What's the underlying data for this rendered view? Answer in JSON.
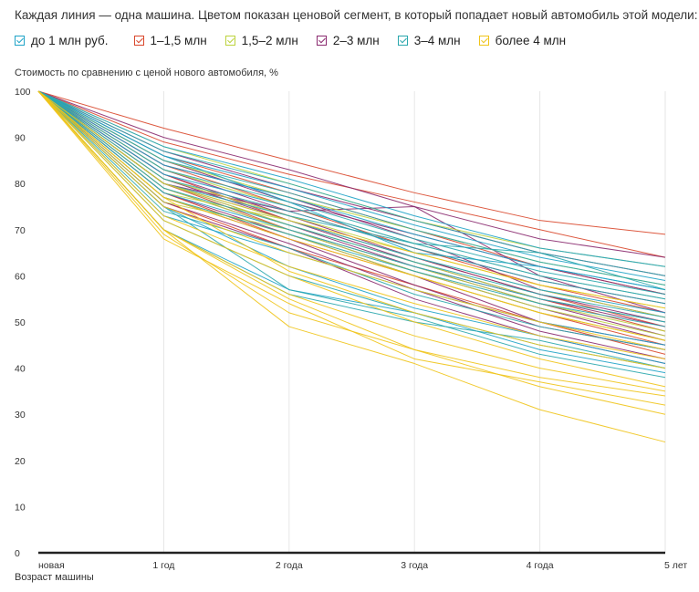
{
  "chart_data": {
    "type": "line",
    "title": "Каждая линия — одна машина. Цветом показан ценовой сегмент, в который попадает новый автомобиль этой модели:",
    "ylabel": "Стоимость по сравнению с ценой нового автомобиля, %",
    "xlabel": "Возраст машины",
    "categories": [
      "новая",
      "1 год",
      "2 года",
      "3 года",
      "4 года",
      "5 лет"
    ],
    "ylim": [
      0,
      100
    ],
    "yticks": [
      0,
      10,
      20,
      30,
      40,
      50,
      60,
      70,
      80,
      90,
      100
    ],
    "grid": "vertical",
    "legend": "top",
    "segments": [
      {
        "label": "до 1 млн руб.",
        "color": "#1fa3c7"
      },
      {
        "label": "1–1,5 млн",
        "color": "#d9472b"
      },
      {
        "label": "1,5–2 млн",
        "color": "#bcd23c"
      },
      {
        "label": "2–3 млн",
        "color": "#8a2a6f"
      },
      {
        "label": "3–4 млн",
        "color": "#2aa7ad"
      },
      {
        "label": "более 4 млн",
        "color": "#f0c419"
      }
    ],
    "series": [
      {
        "segment": 1,
        "values": [
          100,
          92,
          85,
          78,
          72,
          69
        ]
      },
      {
        "segment": 1,
        "values": [
          100,
          89,
          82,
          76,
          70,
          64
        ]
      },
      {
        "segment": 1,
        "values": [
          100,
          86,
          78,
          70,
          62,
          56
        ]
      },
      {
        "segment": 1,
        "values": [
          100,
          84,
          75,
          66,
          58,
          52
        ]
      },
      {
        "segment": 1,
        "values": [
          100,
          82,
          72,
          64,
          56,
          49
        ]
      },
      {
        "segment": 1,
        "values": [
          100,
          80,
          70,
          62,
          55,
          48
        ]
      },
      {
        "segment": 1,
        "values": [
          100,
          78,
          68,
          60,
          52,
          45
        ]
      },
      {
        "segment": 1,
        "values": [
          100,
          76,
          66,
          58,
          50,
          43
        ]
      },
      {
        "segment": 3,
        "values": [
          100,
          90,
          83,
          75,
          68,
          64
        ]
      },
      {
        "segment": 3,
        "values": [
          100,
          87,
          79,
          72,
          65,
          60
        ]
      },
      {
        "segment": 3,
        "values": [
          100,
          85,
          76,
          69,
          62,
          56
        ]
      },
      {
        "segment": 3,
        "values": [
          100,
          83,
          74,
          66,
          59,
          54
        ]
      },
      {
        "segment": 3,
        "values": [
          100,
          82,
          73,
          64,
          56,
          50
        ]
      },
      {
        "segment": 3,
        "values": [
          100,
          81,
          72,
          63,
          55,
          49
        ]
      },
      {
        "segment": 3,
        "values": [
          100,
          80,
          71,
          62,
          54,
          47
        ]
      },
      {
        "segment": 3,
        "values": [
          100,
          79,
          70,
          61,
          53,
          46
        ]
      },
      {
        "segment": 3,
        "values": [
          100,
          78,
          69,
          60,
          50,
          45
        ]
      },
      {
        "segment": 3,
        "values": [
          100,
          77,
          68,
          58,
          49,
          44
        ]
      },
      {
        "segment": 3,
        "values": [
          100,
          76,
          67,
          57,
          48,
          42
        ]
      },
      {
        "segment": 3,
        "values": [
          100,
          75,
          66,
          55,
          47,
          41
        ]
      },
      {
        "segment": 3,
        "values": [
          100,
          80,
          74,
          75,
          60,
          52
        ]
      },
      {
        "segment": 3,
        "values": [
          100,
          84,
          77,
          68,
          57,
          51
        ]
      },
      {
        "segment": 2,
        "values": [
          100,
          88,
          80,
          72,
          66,
          62
        ]
      },
      {
        "segment": 2,
        "values": [
          100,
          85,
          77,
          70,
          63,
          58
        ]
      },
      {
        "segment": 2,
        "values": [
          100,
          83,
          75,
          67,
          60,
          55
        ]
      },
      {
        "segment": 2,
        "values": [
          100,
          81,
          73,
          65,
          58,
          53
        ]
      },
      {
        "segment": 2,
        "values": [
          100,
          80,
          71,
          63,
          55,
          50
        ]
      },
      {
        "segment": 2,
        "values": [
          100,
          79,
          70,
          61,
          53,
          47
        ]
      },
      {
        "segment": 2,
        "values": [
          100,
          77,
          69,
          60,
          52,
          46
        ]
      },
      {
        "segment": 2,
        "values": [
          100,
          76,
          70,
          62,
          54,
          48
        ]
      },
      {
        "segment": 2,
        "values": [
          100,
          78,
          72,
          64,
          57,
          51
        ]
      },
      {
        "segment": 0,
        "values": [
          100,
          88,
          81,
          73,
          66,
          62
        ]
      },
      {
        "segment": 0,
        "values": [
          100,
          86,
          79,
          71,
          64,
          59
        ]
      },
      {
        "segment": 0,
        "values": [
          100,
          84,
          77,
          69,
          62,
          57
        ]
      },
      {
        "segment": 0,
        "values": [
          100,
          82,
          75,
          67,
          60,
          55
        ]
      },
      {
        "segment": 0,
        "values": [
          100,
          80,
          72,
          64,
          57,
          52
        ]
      },
      {
        "segment": 0,
        "values": [
          100,
          78,
          70,
          62,
          55,
          50
        ]
      },
      {
        "segment": 0,
        "values": [
          100,
          73,
          65,
          57,
          50,
          45
        ]
      },
      {
        "segment": 0,
        "values": [
          100,
          70,
          57,
          52,
          44,
          39
        ]
      },
      {
        "segment": 0,
        "values": [
          100,
          75,
          62,
          53,
          47,
          41
        ]
      },
      {
        "segment": 0,
        "values": [
          100,
          86,
          76,
          65,
          62,
          57
        ]
      },
      {
        "segment": 4,
        "values": [
          100,
          87,
          80,
          72,
          65,
          60
        ]
      },
      {
        "segment": 4,
        "values": [
          100,
          85,
          78,
          70,
          63,
          58
        ]
      },
      {
        "segment": 4,
        "values": [
          100,
          83,
          76,
          68,
          61,
          56
        ]
      },
      {
        "segment": 4,
        "values": [
          100,
          81,
          74,
          66,
          59,
          54
        ]
      },
      {
        "segment": 4,
        "values": [
          100,
          79,
          71,
          63,
          56,
          51
        ]
      },
      {
        "segment": 4,
        "values": [
          100,
          77,
          69,
          61,
          54,
          49
        ]
      },
      {
        "segment": 4,
        "values": [
          100,
          74,
          66,
          56,
          49,
          44
        ]
      },
      {
        "segment": 4,
        "values": [
          100,
          72,
          60,
          52,
          45,
          40
        ]
      },
      {
        "segment": 4,
        "values": [
          100,
          75,
          57,
          51,
          43,
          38
        ]
      },
      {
        "segment": 4,
        "values": [
          100,
          70,
          56,
          50,
          46,
          40
        ]
      },
      {
        "segment": 4,
        "values": [
          100,
          80,
          73,
          67,
          65,
          57
        ]
      },
      {
        "segment": 5,
        "values": [
          100,
          80,
          72,
          65,
          58,
          53
        ]
      },
      {
        "segment": 5,
        "values": [
          100,
          77,
          68,
          60,
          52,
          46
        ]
      },
      {
        "segment": 5,
        "values": [
          100,
          75,
          65,
          57,
          50,
          44
        ]
      },
      {
        "segment": 5,
        "values": [
          100,
          73,
          62,
          54,
          47,
          42
        ]
      },
      {
        "segment": 5,
        "values": [
          100,
          72,
          60,
          50,
          42,
          36
        ]
      },
      {
        "segment": 5,
        "values": [
          100,
          70,
          56,
          47,
          40,
          35
        ]
      },
      {
        "segment": 5,
        "values": [
          100,
          70,
          55,
          44,
          38,
          34
        ]
      },
      {
        "segment": 5,
        "values": [
          100,
          68,
          54,
          42,
          37,
          32
        ]
      },
      {
        "segment": 5,
        "values": [
          100,
          69,
          52,
          44,
          36,
          30
        ]
      },
      {
        "segment": 5,
        "values": [
          100,
          70,
          49,
          41,
          31,
          24
        ]
      },
      {
        "segment": 5,
        "values": [
          100,
          77,
          61,
          52,
          45,
          40
        ]
      }
    ]
  }
}
